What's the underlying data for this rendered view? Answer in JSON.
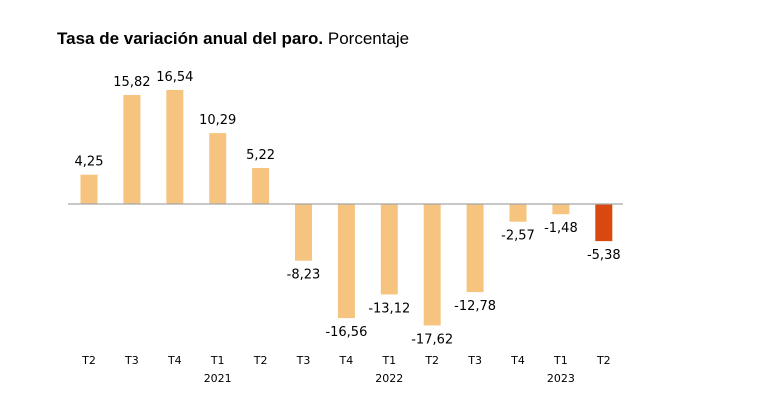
{
  "chart_data": {
    "type": "bar",
    "title": "Tasa de variación anual del paro.",
    "subtitle": "Porcentaje",
    "categories": [
      "T2",
      "T3",
      "T4",
      "T1",
      "T2",
      "T3",
      "T4",
      "T1",
      "T2",
      "T3",
      "T4",
      "T1",
      "T2"
    ],
    "year_labels": [
      {
        "index": 3,
        "label": "2021"
      },
      {
        "index": 7,
        "label": "2022"
      },
      {
        "index": 11,
        "label": "2023"
      }
    ],
    "values": [
      4.25,
      15.82,
      16.54,
      10.29,
      5.22,
      -8.23,
      -16.56,
      -13.12,
      -17.62,
      -12.78,
      -2.57,
      -1.48,
      -5.38
    ],
    "value_labels": [
      "4,25",
      "15,82",
      "16,54",
      "10,29",
      "5,22",
      "-8,23",
      "-16,56",
      "-13,12",
      "-17,62",
      "-12,78",
      "-2,57",
      "-1,48",
      "-5,38"
    ],
    "highlight_index": 12,
    "xlabel": "",
    "ylabel": "",
    "ylim": [
      -17.62,
      16.54
    ],
    "grid": false,
    "colors": {
      "bar": "#f6c47f",
      "highlight": "#d9480f",
      "axis": "#a6a6a6"
    }
  }
}
